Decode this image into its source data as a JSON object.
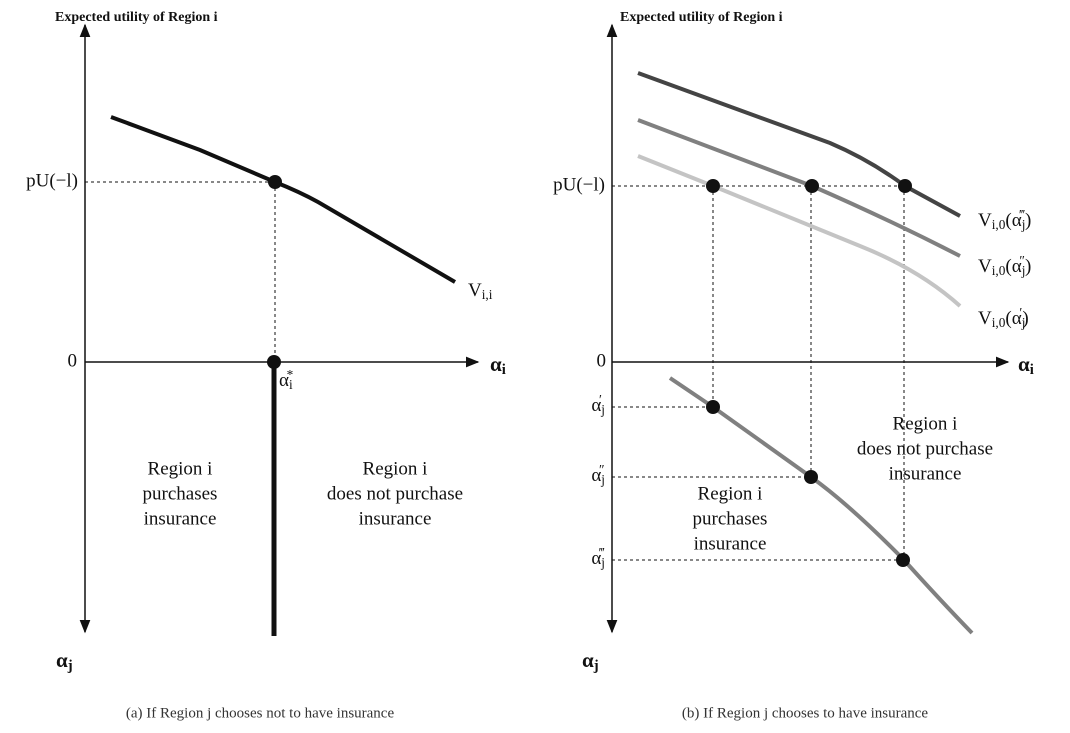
{
  "panels": [
    {
      "y_axis_title": "Expected utility of Region i",
      "utility_label": "pU(−l)",
      "origin_label": "0",
      "x_axis_label": [
        "α",
        "i"
      ],
      "lower_axis_label": [
        "α",
        "j"
      ],
      "curve_labels": [
        [
          "V",
          "i,i"
        ]
      ],
      "threshold_labels": [
        [
          "α",
          "i",
          "*"
        ]
      ],
      "regions": [
        [
          "Region i",
          "purchases",
          "insurance"
        ],
        [
          "Region i",
          "does not purchase",
          "insurance"
        ]
      ],
      "caption": "(a) If Region j chooses not to have insurance"
    },
    {
      "y_axis_title": "Expected utility of Region i",
      "utility_label": "pU(−l)",
      "origin_label": "0",
      "x_axis_label": [
        "α",
        "i"
      ],
      "lower_axis_label": [
        "α",
        "j"
      ],
      "curve_labels": [
        [
          "V",
          "i,0",
          "(α",
          "j",
          "‴",
          ")"
        ],
        [
          "V",
          "i,0",
          "(α",
          "j",
          "″",
          ")"
        ],
        [
          "V",
          "i,0",
          "(α",
          "j",
          "′",
          ")"
        ]
      ],
      "threshold_labels": [
        [
          "α",
          "j",
          "′"
        ],
        [
          "α",
          "j",
          "″"
        ],
        [
          "α",
          "j",
          "‴"
        ]
      ],
      "regions": [
        [
          "Region i",
          "purchases",
          "insurance"
        ],
        [
          "Region i",
          "does not purchase",
          "insurance"
        ]
      ],
      "caption": "(b) If Region j chooses to have insurance"
    }
  ]
}
